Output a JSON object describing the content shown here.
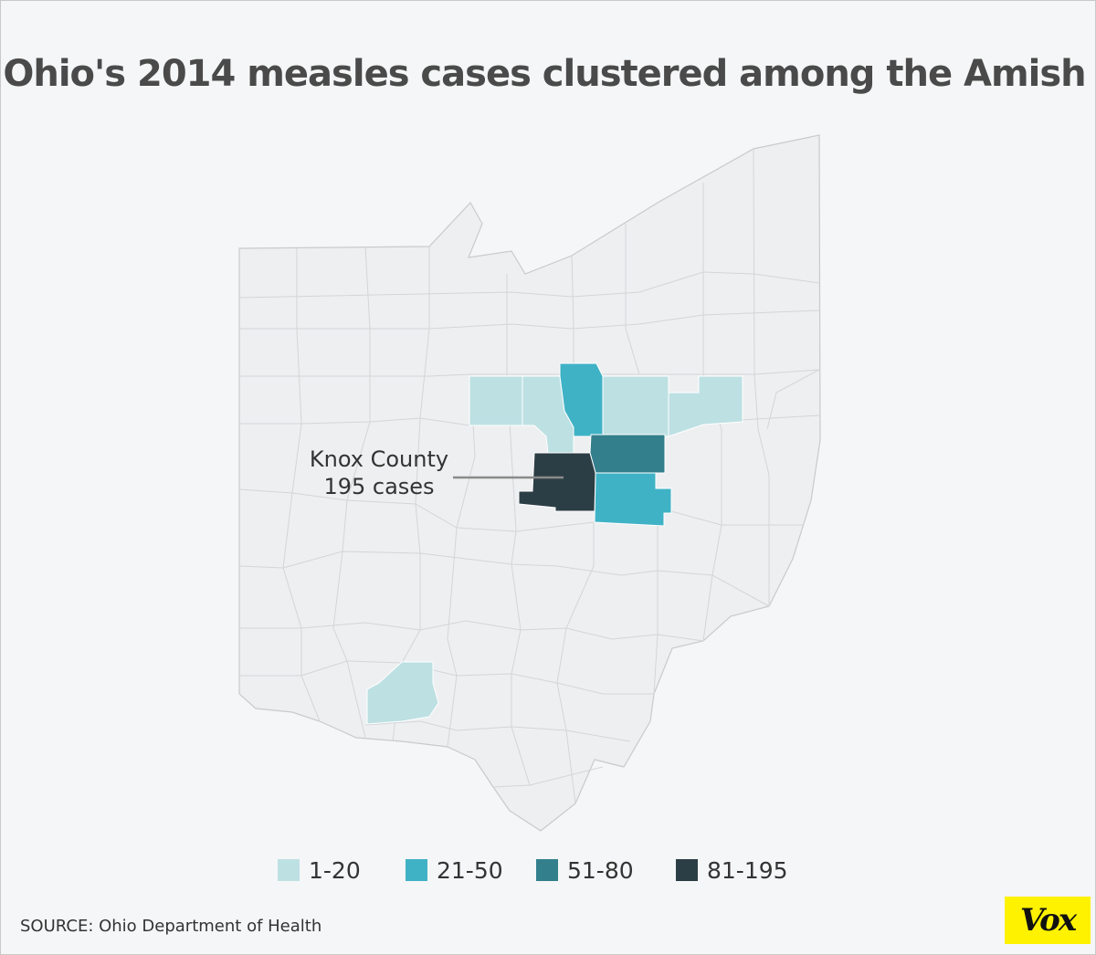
{
  "title": "Ohio's 2014 measles cases clustered among the Amish",
  "callout": {
    "county": "Knox County",
    "cases": "195 cases"
  },
  "legend": [
    {
      "label": "1-20",
      "color": "#bde0e3"
    },
    {
      "label": "21-50",
      "color": "#40b2c5"
    },
    {
      "label": "51-80",
      "color": "#33808c"
    },
    {
      "label": "81-195",
      "color": "#2c3e45"
    }
  ],
  "colors": {
    "base": "#eeeff0",
    "border": "#c8cacc"
  },
  "source": "SOURCE: Ohio Department of Health",
  "logo": "Vox"
}
